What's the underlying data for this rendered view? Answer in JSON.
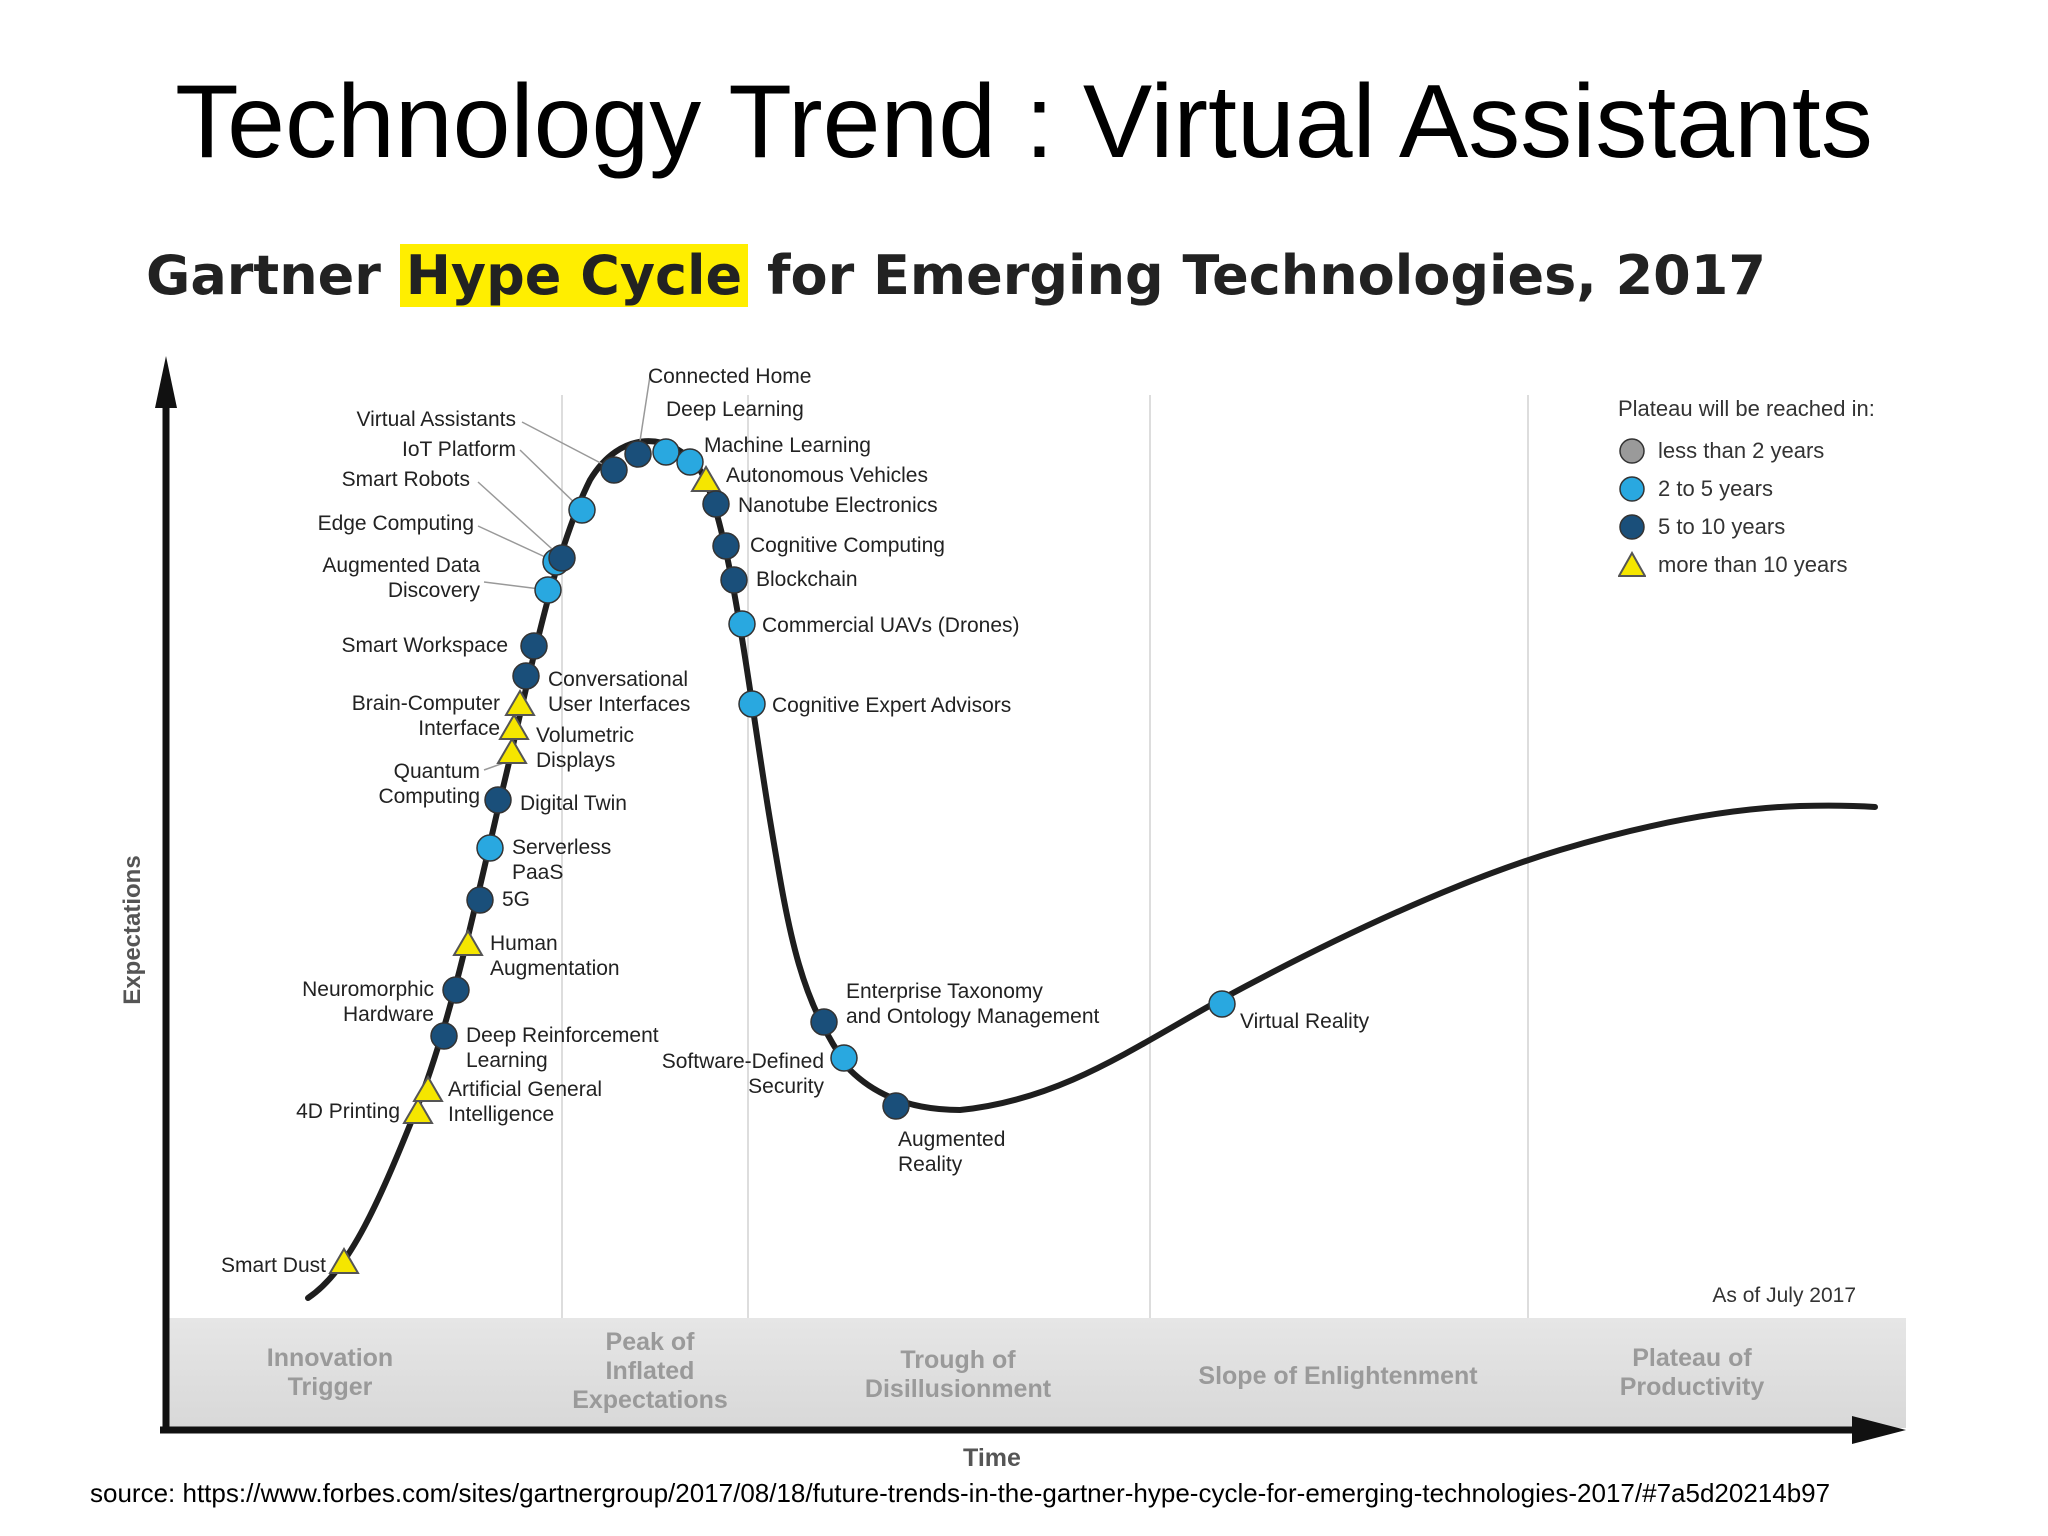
{
  "slide_title": "Technology Trend : Virtual Assistants",
  "diagram": {
    "title_pre": "Gartner ",
    "title_highlight": "Hype Cycle",
    "title_post": " for Emerging Technologies, 2017",
    "y_axis_label": "Expectations",
    "x_axis_label": "Time",
    "as_of": "As of July 2017",
    "phases": [
      {
        "lines": [
          "Innovation",
          "Trigger"
        ]
      },
      {
        "lines": [
          "Peak of",
          "Inflated",
          "Expectations"
        ]
      },
      {
        "lines": [
          "Trough of",
          "Disillusionment"
        ]
      },
      {
        "lines": [
          "Slope of Enlightenment"
        ]
      },
      {
        "lines": [
          "Plateau of",
          "Productivity"
        ]
      }
    ],
    "legend": {
      "title": "Plateau will be reached in:",
      "items": [
        {
          "label": "less than 2 years",
          "marker": "circle",
          "color": "#9a9a9a"
        },
        {
          "label": "2 to 5 years",
          "marker": "circle",
          "color": "#29a8e0"
        },
        {
          "label": "5 to 10 years",
          "marker": "circle",
          "color": "#1a4f7a"
        },
        {
          "label": "more than 10 years",
          "marker": "triangle",
          "color": "#f5e600"
        }
      ]
    },
    "technologies": [
      {
        "name": "Smart Dust",
        "lines": [
          "Smart Dust"
        ],
        "category": "more than 10 years"
      },
      {
        "name": "4D Printing",
        "lines": [
          "4D Printing"
        ],
        "category": "more than 10 years"
      },
      {
        "name": "Artificial General Intelligence",
        "lines": [
          "Artificial General",
          "Intelligence"
        ],
        "category": "more than 10 years"
      },
      {
        "name": "Deep Reinforcement Learning",
        "lines": [
          "Deep Reinforcement",
          "Learning"
        ],
        "category": "5 to 10 years"
      },
      {
        "name": "Neuromorphic Hardware",
        "lines": [
          "Neuromorphic",
          "Hardware"
        ],
        "category": "5 to 10 years"
      },
      {
        "name": "Human Augmentation",
        "lines": [
          "Human",
          "Augmentation"
        ],
        "category": "more than 10 years"
      },
      {
        "name": "5G",
        "lines": [
          "5G"
        ],
        "category": "5 to 10 years"
      },
      {
        "name": "Serverless PaaS",
        "lines": [
          "Serverless",
          "PaaS"
        ],
        "category": "2 to 5 years"
      },
      {
        "name": "Digital Twin",
        "lines": [
          "Digital Twin"
        ],
        "category": "5 to 10 years"
      },
      {
        "name": "Quantum Computing",
        "lines": [
          "Quantum",
          "Computing"
        ],
        "category": "more than 10 years"
      },
      {
        "name": "Volumetric Displays",
        "lines": [
          "Volumetric",
          "Displays"
        ],
        "category": "more than 10 years"
      },
      {
        "name": "Brain-Computer Interface",
        "lines": [
          "Brain-Computer",
          "Interface"
        ],
        "category": "more than 10 years"
      },
      {
        "name": "Conversational User Interfaces",
        "lines": [
          "Conversational",
          "User Interfaces"
        ],
        "category": "5 to 10 years"
      },
      {
        "name": "Smart Workspace",
        "lines": [
          "Smart Workspace"
        ],
        "category": "5 to 10 years"
      },
      {
        "name": "Augmented Data Discovery",
        "lines": [
          "Augmented Data",
          "Discovery"
        ],
        "category": "2 to 5 years"
      },
      {
        "name": "Edge Computing",
        "lines": [
          "Edge Computing"
        ],
        "category": "2 to 5 years"
      },
      {
        "name": "Smart Robots",
        "lines": [
          "Smart Robots"
        ],
        "category": "5 to 10 years"
      },
      {
        "name": "IoT Platform",
        "lines": [
          "IoT Platform"
        ],
        "category": "2 to 5 years"
      },
      {
        "name": "Virtual Assistants",
        "lines": [
          "Virtual Assistants"
        ],
        "category": "5 to 10 years"
      },
      {
        "name": "Connected Home",
        "lines": [
          "Connected Home"
        ],
        "category": "5 to 10 years"
      },
      {
        "name": "Deep Learning",
        "lines": [
          "Deep Learning"
        ],
        "category": "2 to 5 years"
      },
      {
        "name": "Machine Learning",
        "lines": [
          "Machine Learning"
        ],
        "category": "2 to 5 years"
      },
      {
        "name": "Autonomous Vehicles",
        "lines": [
          "Autonomous Vehicles"
        ],
        "category": "more than 10 years"
      },
      {
        "name": "Nanotube Electronics",
        "lines": [
          "Nanotube Electronics"
        ],
        "category": "5 to 10 years"
      },
      {
        "name": "Cognitive Computing",
        "lines": [
          "Cognitive Computing"
        ],
        "category": "5 to 10 years"
      },
      {
        "name": "Blockchain",
        "lines": [
          "Blockchain"
        ],
        "category": "5 to 10 years"
      },
      {
        "name": "Commercial UAVs (Drones)",
        "lines": [
          "Commercial UAVs (Drones)"
        ],
        "category": "2 to 5 years"
      },
      {
        "name": "Cognitive Expert Advisors",
        "lines": [
          "Cognitive Expert Advisors"
        ],
        "category": "2 to 5 years"
      },
      {
        "name": "Enterprise Taxonomy and Ontology Management",
        "lines": [
          "Enterprise Taxonomy",
          "and Ontology Management"
        ],
        "category": "5 to 10 years"
      },
      {
        "name": "Software-Defined Security",
        "lines": [
          "Software-Defined",
          "Security"
        ],
        "category": "2 to 5 years"
      },
      {
        "name": "Augmented Reality",
        "lines": [
          "Augmented",
          "Reality"
        ],
        "category": "5 to 10 years"
      },
      {
        "name": "Virtual Reality",
        "lines": [
          "Virtual Reality"
        ],
        "category": "2 to 5 years"
      }
    ]
  },
  "source": "source: https://www.forbes.com/sites/gartnergroup/2017/08/18/future-trends-in-the-gartner-hype-cycle-for-emerging-technologies-2017/#7a5d20214b97"
}
